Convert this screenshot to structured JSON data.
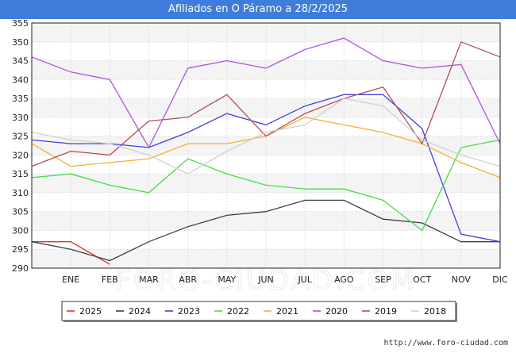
{
  "title": "Afiliados en O Páramo a 28/2/2025",
  "watermark": "FORO-CIUDAD.COM",
  "source_url": "http://www.foro-ciudad.com",
  "chart_data": {
    "type": "line",
    "categories": [
      "",
      "ENE",
      "FEB",
      "MAR",
      "ABR",
      "MAY",
      "JUN",
      "JUL",
      "AGO",
      "SEP",
      "OCT",
      "NOV",
      "DIC"
    ],
    "ylim": [
      290,
      355
    ],
    "yticks": [
      290,
      295,
      300,
      305,
      310,
      315,
      320,
      325,
      330,
      335,
      340,
      345,
      350,
      355
    ],
    "grid": true,
    "legend_position": "bottom",
    "series": [
      {
        "name": "2025",
        "color": "#e03030",
        "values": [
          297,
          297,
          291,
          null,
          null,
          null,
          null,
          null,
          null,
          null,
          null,
          null,
          null
        ]
      },
      {
        "name": "2024",
        "color": "#404040",
        "values": [
          297,
          295,
          292,
          297,
          301,
          304,
          305,
          308,
          308,
          303,
          302,
          297,
          297
        ]
      },
      {
        "name": "2023",
        "color": "#4040e0",
        "values": [
          324,
          323,
          323,
          322,
          326,
          331,
          328,
          333,
          336,
          336,
          327,
          299,
          297
        ]
      },
      {
        "name": "2022",
        "color": "#40e040",
        "values": [
          314,
          315,
          312,
          310,
          319,
          315,
          312,
          311,
          311,
          308,
          300,
          322,
          324
        ]
      },
      {
        "name": "2021",
        "color": "#f5b030",
        "values": [
          323,
          317,
          318,
          319,
          323,
          323,
          325,
          330,
          328,
          326,
          323,
          318,
          314
        ]
      },
      {
        "name": "2020",
        "color": "#b050e0",
        "values": [
          346,
          342,
          340,
          322,
          343,
          345,
          343,
          348,
          351,
          345,
          343,
          344,
          323
        ]
      },
      {
        "name": "2019",
        "color": "#b05050",
        "values": [
          317,
          321,
          320,
          329,
          330,
          336,
          325,
          331,
          335,
          338,
          323,
          350,
          346
        ]
      },
      {
        "name": "2018",
        "color": "#d0d0d0",
        "values": [
          326,
          324,
          323,
          320,
          315,
          321,
          326,
          328,
          335,
          333,
          324,
          320,
          317
        ]
      }
    ]
  }
}
